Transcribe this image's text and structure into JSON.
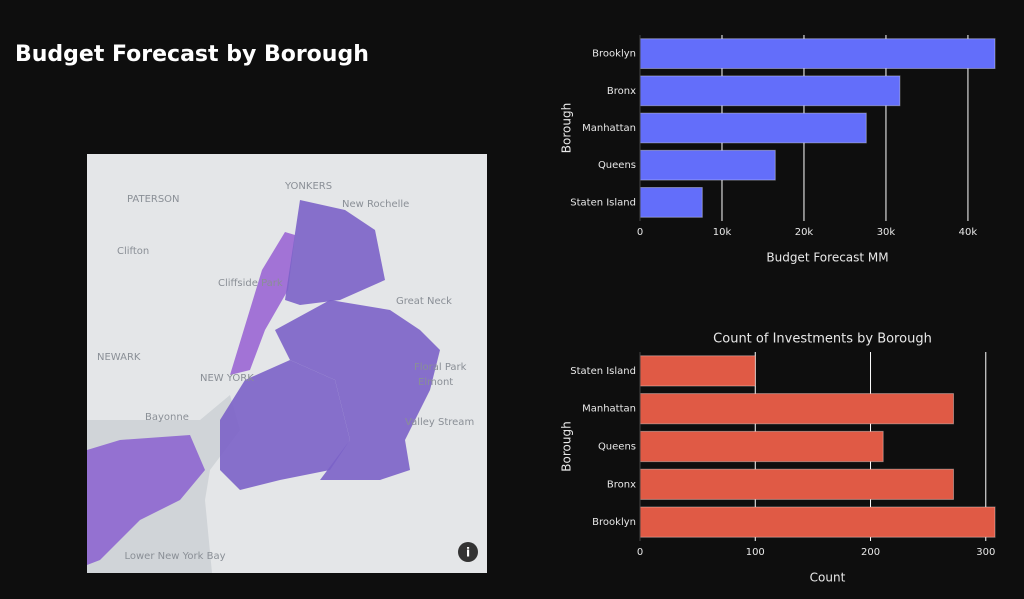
{
  "page": {
    "title": "Budget Forecast by Borough"
  },
  "map": {
    "labels": [
      "PATERSON",
      "YONKERS",
      "New Rochelle",
      "Clifton",
      "Cliffside Park",
      "Great Neck",
      "NEWARK",
      "NEW YORK",
      "Floral Park",
      "Elmont",
      "Bayonne",
      "Valley Stream",
      "Lower New York Bay"
    ],
    "info_icon": "i"
  },
  "chart_data": [
    {
      "type": "bar",
      "orientation": "horizontal",
      "xlabel": "Budget Forecast MM",
      "ylabel": "Borough",
      "categories": [
        "Brooklyn",
        "Bronx",
        "Manhattan",
        "Queens",
        "Staten Island"
      ],
      "values": [
        43300,
        31700,
        27600,
        16500,
        7600
      ],
      "color": "#636efa",
      "xlim": [
        0,
        43300
      ],
      "xticks": [
        0,
        {
          "value": 10000,
          "label": "10k"
        },
        {
          "value": 20000,
          "label": "20k"
        },
        {
          "value": 30000,
          "label": "30k"
        },
        {
          "value": 40000,
          "label": "40k"
        }
      ],
      "grid": true
    },
    {
      "type": "bar",
      "orientation": "horizontal",
      "title": "Count of Investments by Borough",
      "xlabel": "Count",
      "ylabel": "Borough",
      "categories": [
        "Staten Island",
        "Manhattan",
        "Queens",
        "Bronx",
        "Brooklyn"
      ],
      "values": [
        100,
        272,
        211,
        272,
        308
      ],
      "color": "#e05a45",
      "xlim": [
        0,
        308
      ],
      "xticks": [
        0,
        100,
        200,
        300
      ],
      "grid": true
    }
  ]
}
